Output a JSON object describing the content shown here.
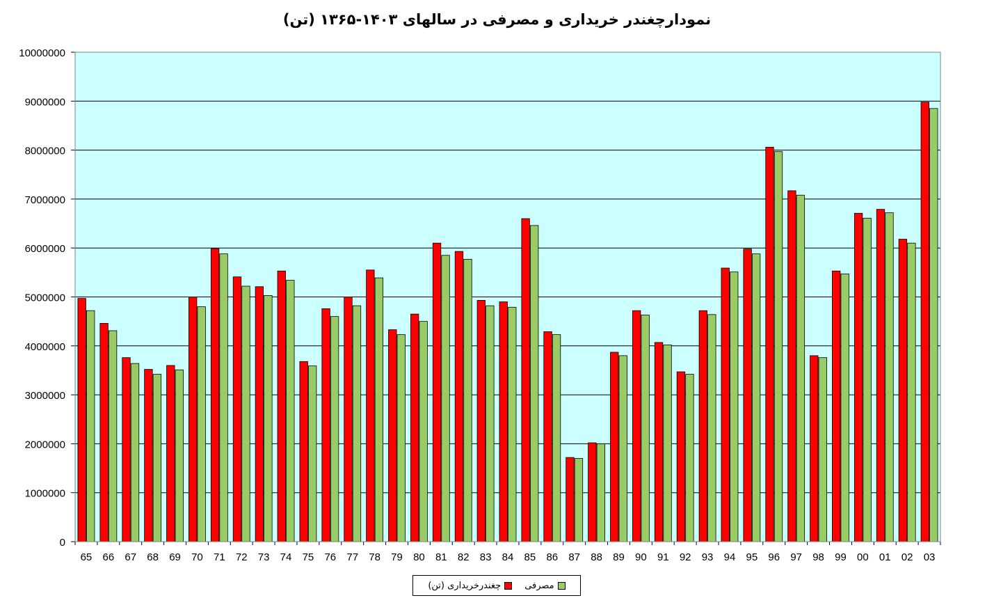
{
  "chart_data": {
    "type": "bar",
    "title": "نمودارچغندر خریداری و مصرفی در سالهای ۱۴۰۳-۱۳۶۵ (تن)",
    "categories": [
      "65",
      "66",
      "67",
      "68",
      "69",
      "70",
      "71",
      "72",
      "73",
      "74",
      "75",
      "76",
      "77",
      "78",
      "79",
      "80",
      "81",
      "82",
      "83",
      "84",
      "85",
      "86",
      "87",
      "88",
      "89",
      "90",
      "91",
      "92",
      "93",
      "94",
      "95",
      "96",
      "97",
      "98",
      "99",
      "00",
      "01",
      "02",
      "03"
    ],
    "series": [
      {
        "name": "چغندرخریداری (تن)",
        "color": "#ff0000",
        "values": [
          4970000,
          4460000,
          3760000,
          3520000,
          3600000,
          5000000,
          5990000,
          5410000,
          5210000,
          5530000,
          3680000,
          4760000,
          5000000,
          5550000,
          4330000,
          4650000,
          6100000,
          5930000,
          4930000,
          4900000,
          6600000,
          4290000,
          1720000,
          2020000,
          3870000,
          4720000,
          4070000,
          3470000,
          4720000,
          5590000,
          5980000,
          8060000,
          7170000,
          3800000,
          5530000,
          6710000,
          6790000,
          6180000,
          8980000
        ]
      },
      {
        "name": "مصرفی",
        "color": "#99cc66",
        "values": [
          4720000,
          4310000,
          3640000,
          3420000,
          3510000,
          4800000,
          5880000,
          5220000,
          5030000,
          5340000,
          3590000,
          4600000,
          4820000,
          5390000,
          4230000,
          4500000,
          5850000,
          5770000,
          4820000,
          4790000,
          6460000,
          4230000,
          1700000,
          2000000,
          3800000,
          4630000,
          4020000,
          3420000,
          4640000,
          5510000,
          5880000,
          7970000,
          7080000,
          3760000,
          5470000,
          6610000,
          6720000,
          6100000,
          8850000
        ]
      }
    ],
    "yticks": [
      "0",
      "1000000",
      "2000000",
      "3000000",
      "4000000",
      "5000000",
      "6000000",
      "7000000",
      "8000000",
      "9000000",
      "10000000"
    ],
    "ylim": [
      0,
      10000000
    ],
    "grid": true,
    "plot_background": "#ccffff",
    "legend_position": "bottom-center",
    "legend": [
      {
        "label": "چغندرخریداری (تن)",
        "color": "#ff0000"
      },
      {
        "label": "مصرفی",
        "color": "#99cc66"
      }
    ]
  }
}
